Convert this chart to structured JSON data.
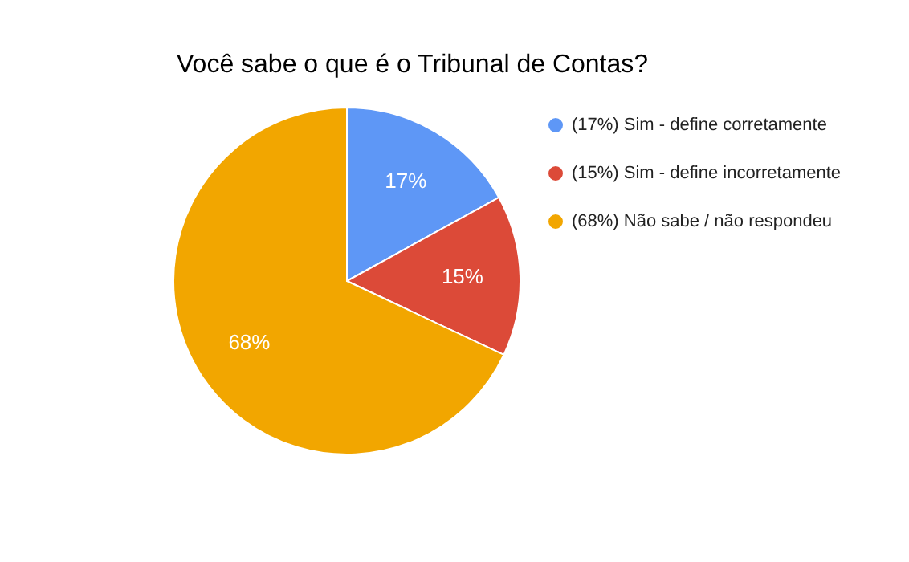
{
  "chart_data": {
    "type": "pie",
    "title": "Você sabe o que é o Tribunal de Contas?",
    "categories": [
      "(17%) Sim - define corretamente",
      "(15%) Sim - define incorretamente",
      "(68%) Não sabe / não respondeu"
    ],
    "values": [
      17,
      15,
      68
    ],
    "colors": [
      "#5e97f6",
      "#dc4a38",
      "#f2a600"
    ],
    "value_labels": [
      "17%",
      "15%",
      "68%"
    ],
    "legend": "right"
  }
}
